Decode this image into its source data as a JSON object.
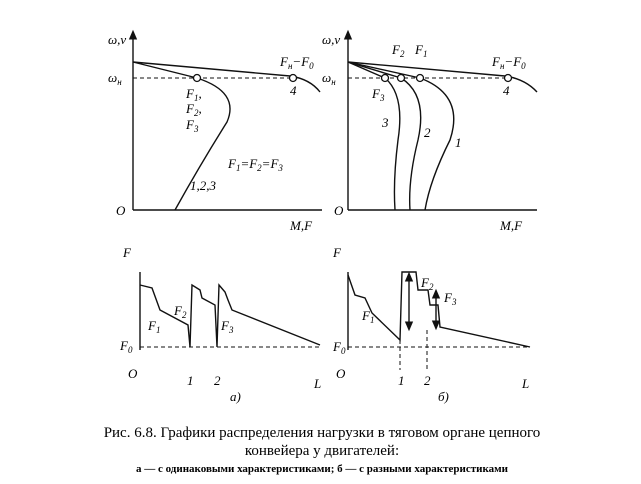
{
  "panel_a": {
    "top": {
      "y_axis": "ω,v",
      "omega": "ω",
      "omega_sub": "н",
      "load": [
        "F",
        "н",
        "−F",
        "0"
      ],
      "point": "4",
      "f_labels": [
        [
          "F",
          "1",
          ","
        ],
        [
          "F",
          "2",
          ","
        ],
        [
          "F",
          "3",
          ""
        ]
      ],
      "equality": [
        "F",
        "1",
        "=F",
        "2",
        "=F",
        "3"
      ],
      "curve": "1,2,3",
      "origin": "O",
      "x_axis": "M,F"
    },
    "bottom": {
      "y_axis": "F",
      "f0": [
        "F",
        "0"
      ],
      "f1": [
        "F",
        "1"
      ],
      "f2": [
        "F",
        "2"
      ],
      "f3": [
        "F",
        "3"
      ],
      "origin": "O",
      "marks": [
        "1",
        "2"
      ],
      "x_axis": "L",
      "label": "а)"
    }
  },
  "panel_b": {
    "top": {
      "y_axis": "ω,v",
      "omega": "ω",
      "omega_sub": "н",
      "load": [
        "F",
        "н",
        "−F",
        "0"
      ],
      "point": "4",
      "f_labels": [
        [
          "F",
          "2"
        ],
        [
          "F",
          "1"
        ],
        [
          "F",
          "3"
        ]
      ],
      "curves": [
        "3",
        "2",
        "1"
      ],
      "origin": "O",
      "x_axis": "M,F"
    },
    "bottom": {
      "y_axis": "F",
      "f0": [
        "F",
        "0"
      ],
      "f1": [
        "F",
        "1"
      ],
      "f2": [
        "F",
        "2"
      ],
      "f3": [
        "F",
        "3"
      ],
      "origin": "O",
      "marks": [
        "1",
        "2"
      ],
      "x_axis": "L",
      "label": "б)"
    }
  },
  "caption": {
    "line1": "Рис. 6.8. Графики распределения нагрузки в тяговом органе цепного",
    "line2": "конвейера у двигателей:",
    "line3": "а — с одинаковыми характеристиками; б — с разными характеристиками"
  }
}
